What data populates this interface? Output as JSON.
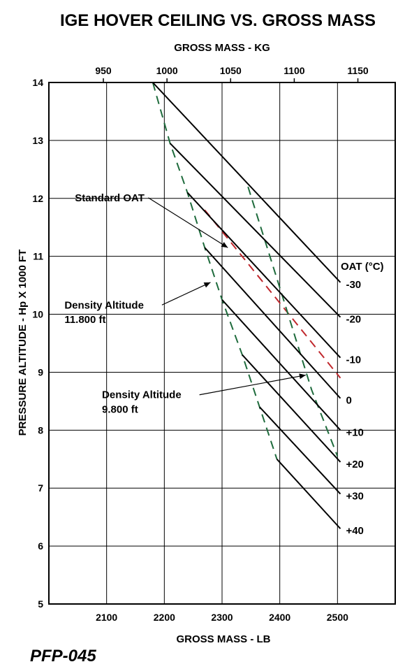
{
  "chart_data": {
    "type": "line",
    "title": "IGE HOVER CEILING VS. GROSS MASS",
    "xlabel": "GROSS MASS - LB",
    "x2label": "GROSS MASS - KG",
    "ylabel": "PRESSURE ALTITUDE - Hp X 1000 FT",
    "xlim": [
      2000,
      2600
    ],
    "ylim": [
      5,
      14
    ],
    "x_ticks": [
      "2100",
      "2200",
      "2300",
      "2400",
      "2500"
    ],
    "x_tick_values": [
      2100,
      2200,
      2300,
      2400,
      2500
    ],
    "x2_ticks": [
      "950",
      "1000",
      "1050",
      "1100",
      "1150"
    ],
    "x2_tick_values": [
      950,
      1000,
      1050,
      1100,
      1150
    ],
    "y_ticks": [
      "5",
      "6",
      "7",
      "8",
      "9",
      "10",
      "11",
      "12",
      "13",
      "14"
    ],
    "grid": true,
    "legend_title": "OAT (°C)",
    "series": [
      {
        "name": "-30",
        "x": [
          2180,
          2505
        ],
        "y": [
          14,
          10.55
        ]
      },
      {
        "name": "-20",
        "x": [
          2210,
          2505
        ],
        "y": [
          12.95,
          9.95
        ]
      },
      {
        "name": "-10",
        "x": [
          2240,
          2505
        ],
        "y": [
          12.1,
          9.25
        ]
      },
      {
        "name": "0",
        "x": [
          2270,
          2505
        ],
        "y": [
          11.15,
          8.55
        ]
      },
      {
        "name": "+10",
        "x": [
          2300,
          2505
        ],
        "y": [
          10.25,
          8.0
        ]
      },
      {
        "name": "+20",
        "x": [
          2335,
          2505
        ],
        "y": [
          9.3,
          7.45
        ]
      },
      {
        "name": "+30",
        "x": [
          2365,
          2505
        ],
        "y": [
          8.4,
          6.9
        ]
      },
      {
        "name": "+40",
        "x": [
          2395,
          2505
        ],
        "y": [
          7.5,
          6.3
        ]
      }
    ],
    "reference_lines": [
      {
        "kind": "standard_oat",
        "color": "#c0282d",
        "x": [
          2270,
          2505
        ],
        "y": [
          11.8,
          8.9
        ]
      },
      {
        "kind": "density_altitude_11800",
        "color": "#1e6b3c",
        "x": [
          2180,
          2210,
          2240,
          2270,
          2300,
          2335,
          2365,
          2395
        ],
        "y": [
          14,
          12.95,
          12.1,
          11.15,
          10.25,
          9.3,
          8.4,
          7.5
        ]
      },
      {
        "kind": "density_altitude_9800",
        "color": "#1e6b3c",
        "x": [
          2345,
          2405,
          2455,
          2500
        ],
        "y": [
          12.2,
          10.3,
          8.7,
          7.55
        ]
      }
    ],
    "annotations": [
      {
        "text": "Standard OAT",
        "x": 2045,
        "y": 11.95,
        "arrow_to": [
          2310,
          11.15
        ]
      },
      {
        "text": "Density Altitude",
        "x": 2027,
        "y": 10.1,
        "arrow_to": [
          2280,
          10.55
        ]
      },
      {
        "text": "11.800 ft",
        "x": 2027,
        "y": 9.85
      },
      {
        "text": "Density Altitude",
        "x": 2092,
        "y": 8.55,
        "arrow_to": [
          2445,
          8.95
        ]
      },
      {
        "text": "9.800 ft",
        "x": 2092,
        "y": 8.3
      }
    ]
  },
  "footer_code": "PFP-045",
  "colors": {
    "line": "#000000",
    "grid": "#000000",
    "standard_oat": "#c0282d",
    "density_altitude": "#1e6b3c"
  }
}
